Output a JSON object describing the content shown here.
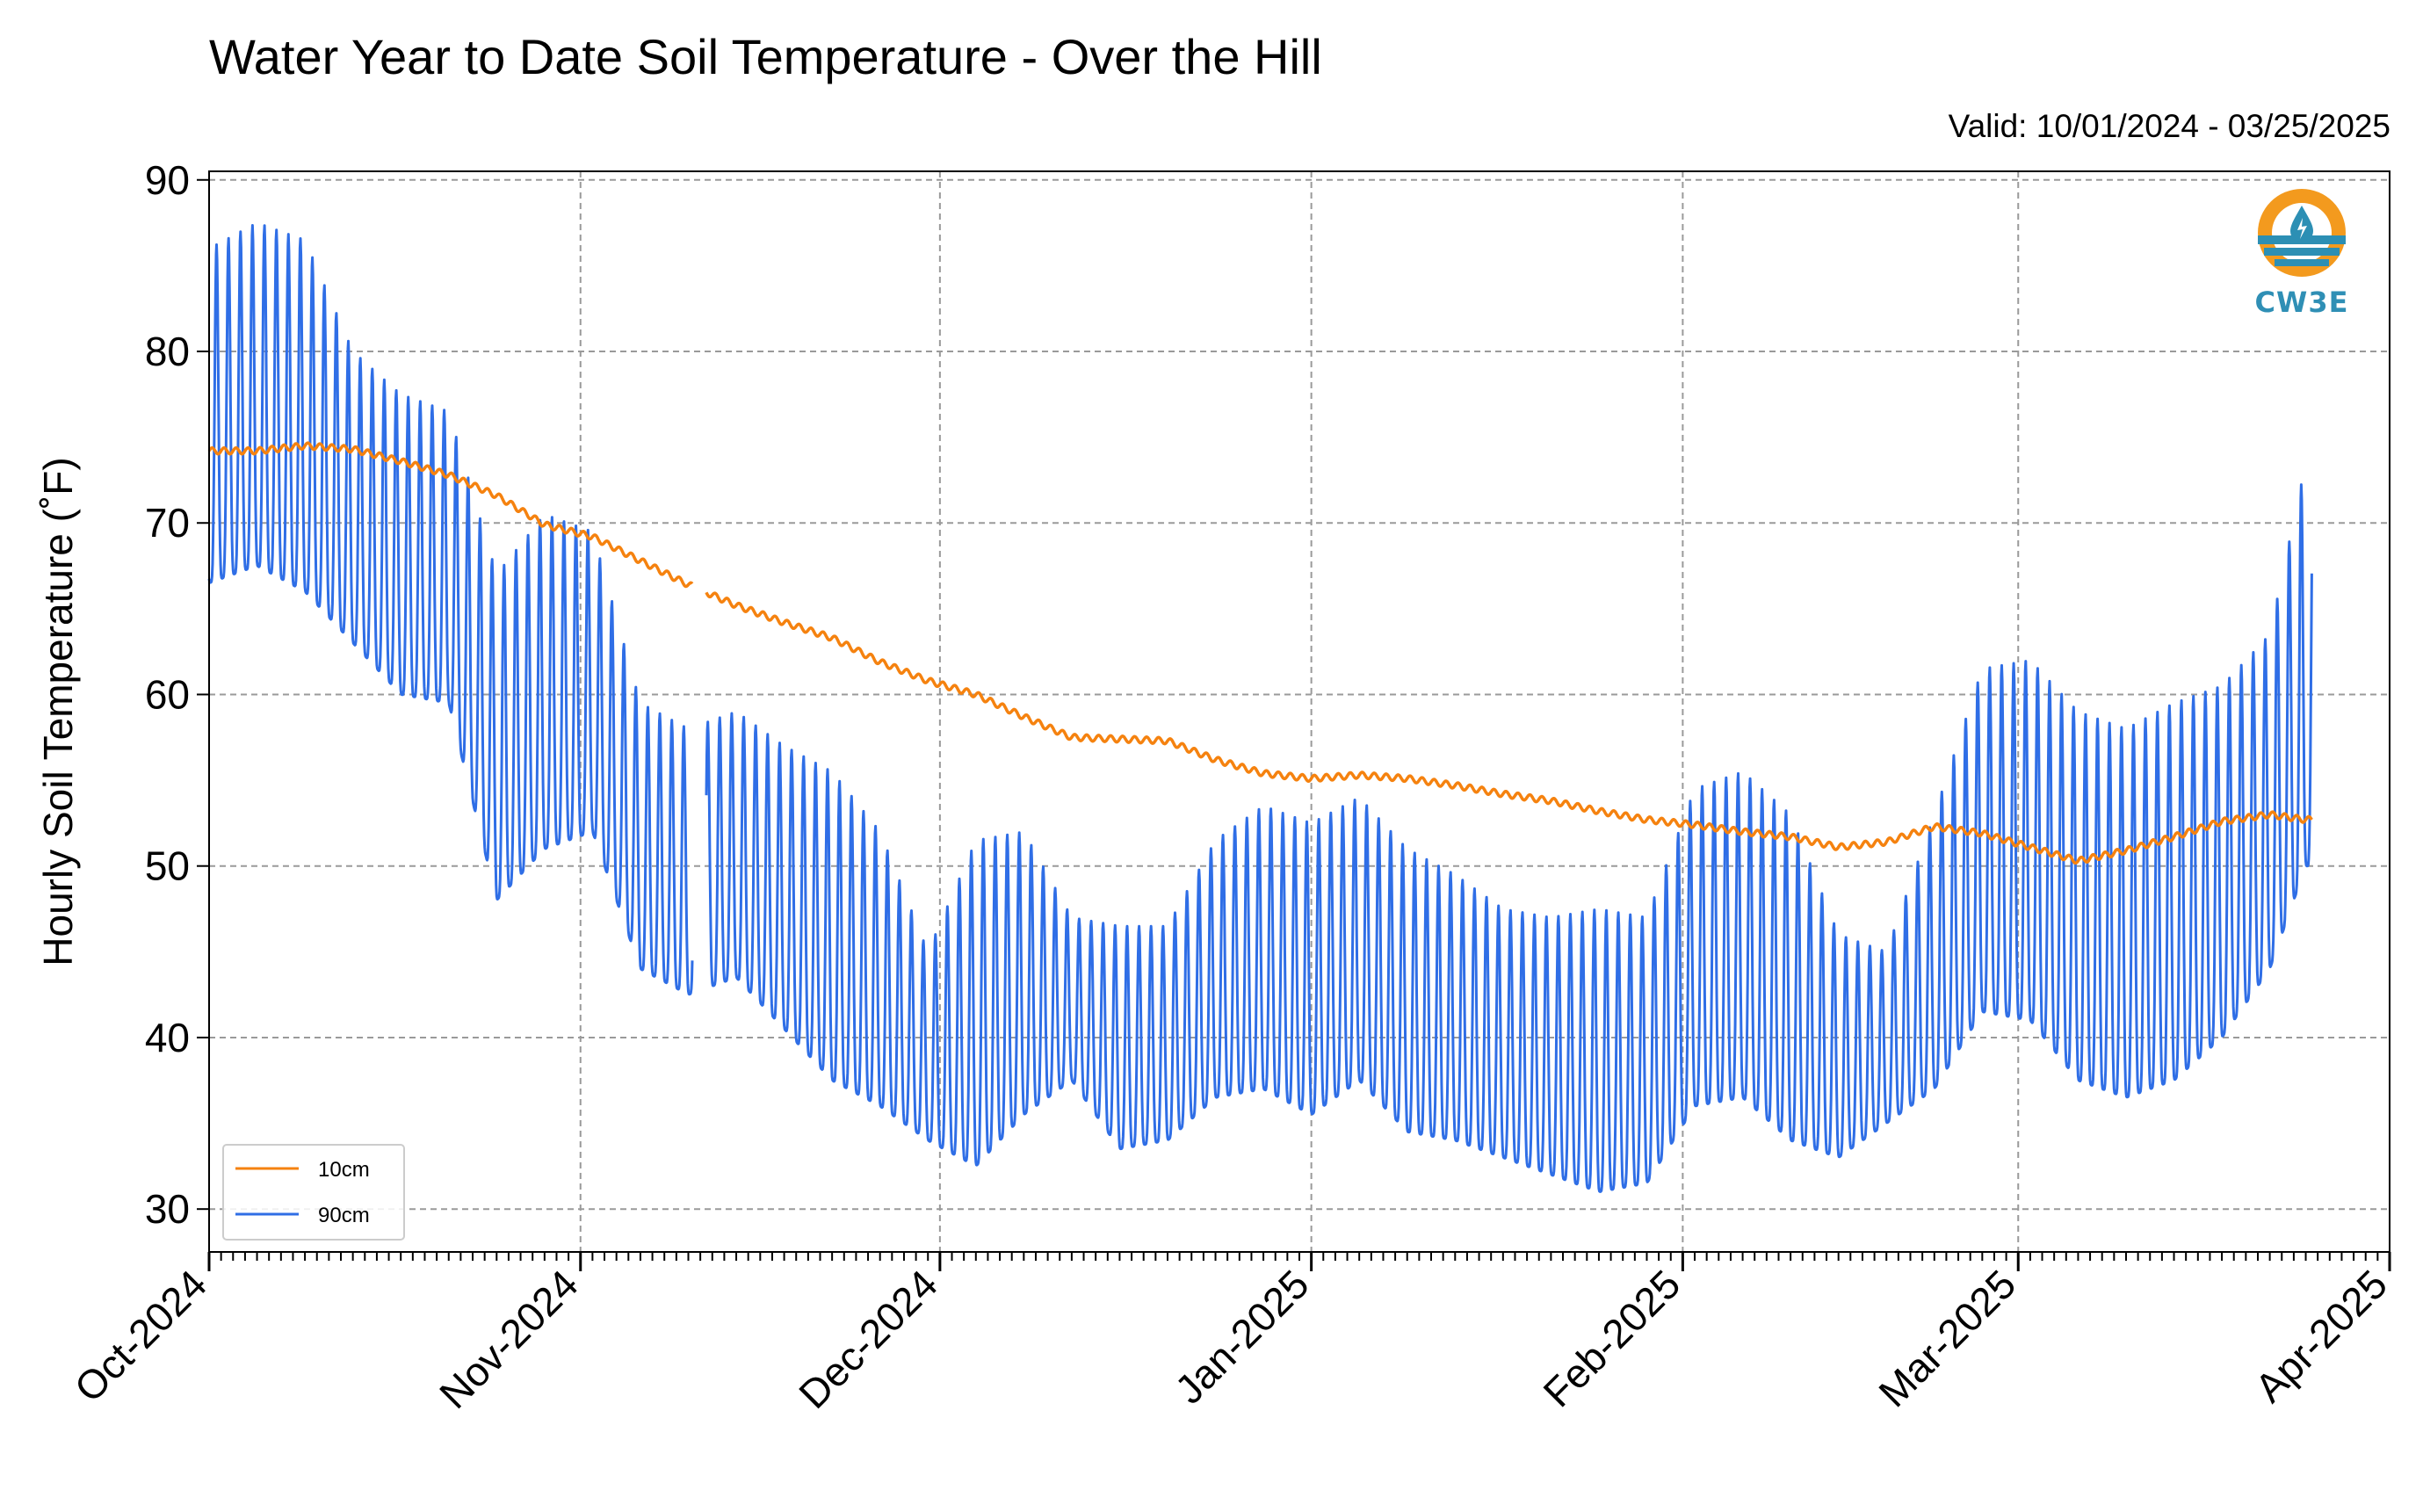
{
  "header": {
    "title": "Water Year to Date Soil Temperature - Over the Hill",
    "valid": "Valid: 10/01/2024 - 03/25/2025"
  },
  "logo": {
    "text": "CW3E",
    "icon": "cw3e-logo-icon"
  },
  "chart_data": {
    "type": "line",
    "title": "Water Year to Date Soil Temperature - Over the Hill",
    "subtitle": "Valid: 10/01/2024 - 03/25/2025",
    "xlabel": "",
    "ylabel": "Hourly Soil Temperature (˚F)",
    "xlim": [
      "2024-10-01",
      "2025-04-01"
    ],
    "ylim": [
      27.5,
      90.5
    ],
    "yticks": [
      30,
      40,
      50,
      60,
      70,
      80,
      90
    ],
    "xticks": [
      {
        "date": "2024-10-01",
        "label": "Oct-2024"
      },
      {
        "date": "2024-11-01",
        "label": "Nov-2024"
      },
      {
        "date": "2024-12-01",
        "label": "Dec-2024"
      },
      {
        "date": "2025-01-01",
        "label": "Jan-2025"
      },
      {
        "date": "2025-02-01",
        "label": "Feb-2025"
      },
      {
        "date": "2025-03-01",
        "label": "Mar-2025"
      },
      {
        "date": "2025-04-01",
        "label": "Apr-2025"
      }
    ],
    "grid": true,
    "legend_position": "lower-left",
    "series": [
      {
        "name": "10cm",
        "color": "#f5820f",
        "sampling": "daily mean",
        "x": [
          "2024-10-01",
          "2024-10-05",
          "2024-10-09",
          "2024-10-13",
          "2024-10-17",
          "2024-10-21",
          "2024-10-25",
          "2024-10-29",
          "2024-11-02",
          "2024-11-06",
          "2024-11-10",
          "2024-11-14",
          "2024-11-18",
          "2024-11-22",
          "2024-11-26",
          "2024-11-30",
          "2024-12-04",
          "2024-12-08",
          "2024-12-12",
          "2024-12-16",
          "2024-12-20",
          "2024-12-24",
          "2024-12-28",
          "2025-01-01",
          "2025-01-05",
          "2025-01-09",
          "2025-01-13",
          "2025-01-17",
          "2025-01-21",
          "2025-01-25",
          "2025-01-29",
          "2025-02-02",
          "2025-02-06",
          "2025-02-10",
          "2025-02-14",
          "2025-02-18",
          "2025-02-22",
          "2025-02-26",
          "2025-03-02",
          "2025-03-06",
          "2025-03-10",
          "2025-03-14",
          "2025-03-18",
          "2025-03-22",
          "2025-03-25"
        ],
        "y": [
          74.2,
          74.2,
          74.5,
          74.3,
          73.6,
          72.8,
          71.6,
          69.9,
          69.2,
          67.8,
          66.4,
          65.2,
          64.2,
          63.3,
          61.9,
          60.8,
          60.0,
          58.7,
          57.5,
          57.4,
          57.3,
          56.2,
          55.4,
          55.1,
          55.3,
          55.1,
          54.7,
          54.2,
          53.8,
          53.2,
          52.7,
          52.4,
          52.0,
          51.7,
          51.1,
          51.4,
          52.3,
          51.9,
          51.1,
          50.3,
          50.9,
          51.7,
          52.6,
          53.0,
          52.7
        ],
        "values_after_gap": null
      },
      {
        "name": "90cm",
        "color": "#2f6ee6",
        "sampling": "daily max / min envelope",
        "x": [
          "2024-10-01",
          "2024-10-05",
          "2024-10-09",
          "2024-10-13",
          "2024-10-17",
          "2024-10-21",
          "2024-10-25",
          "2024-10-29",
          "2024-11-02",
          "2024-11-06",
          "2024-11-10",
          "2024-11-14",
          "2024-11-18",
          "2024-11-22",
          "2024-11-26",
          "2024-11-30",
          "2024-12-04",
          "2024-12-08",
          "2024-12-12",
          "2024-12-16",
          "2024-12-20",
          "2024-12-24",
          "2024-12-28",
          "2025-01-01",
          "2025-01-05",
          "2025-01-09",
          "2025-01-13",
          "2025-01-17",
          "2025-01-21",
          "2025-01-25",
          "2025-01-29",
          "2025-02-02",
          "2025-02-06",
          "2025-02-10",
          "2025-02-14",
          "2025-02-18",
          "2025-02-22",
          "2025-02-26",
          "2025-03-02",
          "2025-03-06",
          "2025-03-10",
          "2025-03-14",
          "2025-03-18",
          "2025-03-22",
          "2025-03-25"
        ],
        "max": [
          86.0,
          87.5,
          86.5,
          80.0,
          77.5,
          76.5,
          67.0,
          70.5,
          69.5,
          59.5,
          58.0,
          59.0,
          57.0,
          55.5,
          52.0,
          45.0,
          51.5,
          52.0,
          47.0,
          46.5,
          46.5,
          51.5,
          53.5,
          52.5,
          54.0,
          51.0,
          49.5,
          47.5,
          47.0,
          47.5,
          47.0,
          54.5,
          55.5,
          53.0,
          46.0,
          45.0,
          53.0,
          61.5,
          62.0,
          59.0,
          58.0,
          59.5,
          60.5,
          63.5,
          73.5
        ],
        "min": [
          66.5,
          67.5,
          66.0,
          63.0,
          60.0,
          59.5,
          48.0,
          51.0,
          52.0,
          44.0,
          42.5,
          43.5,
          40.5,
          37.5,
          36.0,
          34.0,
          32.5,
          35.5,
          37.5,
          33.5,
          34.0,
          36.5,
          37.0,
          35.5,
          37.5,
          34.5,
          34.0,
          33.0,
          32.0,
          31.0,
          31.5,
          36.0,
          36.5,
          34.0,
          33.0,
          35.0,
          37.0,
          41.5,
          41.0,
          37.5,
          36.5,
          37.5,
          40.0,
          44.0,
          50.0
        ]
      }
    ]
  }
}
